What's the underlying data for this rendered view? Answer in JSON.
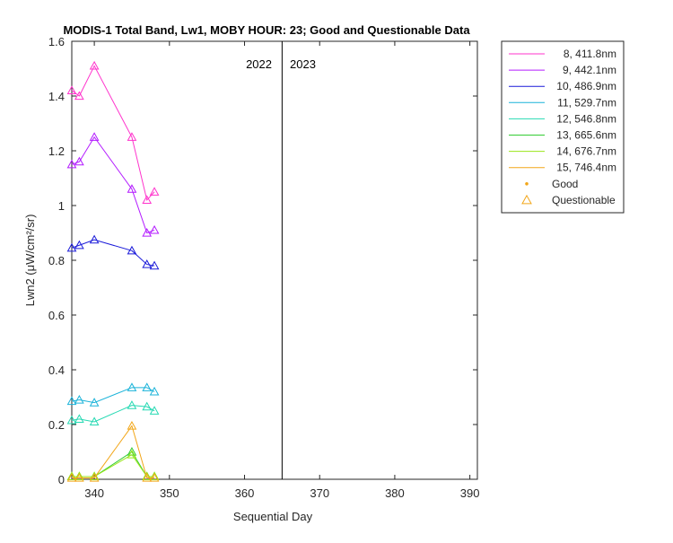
{
  "chart_data": {
    "type": "line",
    "title": "MODIS-1 Total Band, Lw1, MOBY HOUR: 23;  Good and Questionable Data",
    "xlabel": "Sequential Day",
    "ylabel": "Lwn2 (μW/cm²/sr)",
    "xlim": [
      337,
      391
    ],
    "ylim": [
      0,
      1.6
    ],
    "x_ticks": [
      340,
      350,
      360,
      370,
      380,
      390
    ],
    "y_ticks": [
      0,
      0.2,
      0.4,
      0.6,
      0.8,
      1,
      1.2,
      1.4,
      1.6
    ],
    "grid": false,
    "legend_position": "outside-right",
    "year_divider": {
      "x": 365,
      "left_label": "2022",
      "right_label": "2023"
    },
    "x": [
      337,
      338,
      340,
      345,
      347,
      348
    ],
    "series": [
      {
        "name": "8, 411.8nm",
        "color": "#ff33cc",
        "values": [
          1.42,
          1.4,
          1.51,
          1.25,
          1.02,
          1.05
        ]
      },
      {
        "name": "9, 442.1nm",
        "color": "#b31aff",
        "values": [
          1.15,
          1.16,
          1.25,
          1.06,
          0.9,
          0.91
        ]
      },
      {
        "name": "10, 486.9nm",
        "color": "#1a1ad9",
        "values": [
          0.845,
          0.855,
          0.875,
          0.835,
          0.785,
          0.78
        ]
      },
      {
        "name": "11, 529.7nm",
        "color": "#1ab3d9",
        "values": [
          0.285,
          0.29,
          0.28,
          0.335,
          0.335,
          0.32
        ]
      },
      {
        "name": "12, 546.8nm",
        "color": "#26d9b3",
        "values": [
          0.215,
          0.22,
          0.21,
          0.27,
          0.265,
          0.25
        ]
      },
      {
        "name": "13, 665.6nm",
        "color": "#33cc33",
        "values": [
          0.01,
          0.01,
          0.01,
          0.1,
          0.01,
          0.01
        ]
      },
      {
        "name": "14, 676.7nm",
        "color": "#99e61a",
        "values": [
          0.01,
          0.01,
          0.01,
          0.09,
          0.01,
          0.01
        ]
      },
      {
        "name": "15, 746.4nm",
        "color": "#f2a619",
        "values": [
          0.005,
          0.005,
          0.005,
          0.195,
          0.005,
          0.005
        ]
      }
    ],
    "marker_legend": [
      {
        "label": "Good",
        "color": "#f2a619",
        "symbol": "dot"
      },
      {
        "label": "Questionable",
        "color": "#f2a619",
        "symbol": "triangle"
      }
    ]
  }
}
